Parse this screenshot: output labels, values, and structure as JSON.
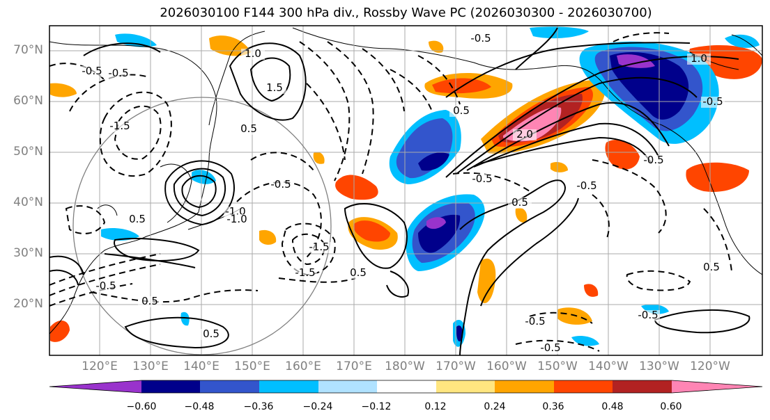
{
  "title": "2026030100 F144 300 hPa div., Rossby Wave PC (2026030300 - 2026030700)",
  "latitude_labels": [
    "70°N",
    "60°N",
    "50°N",
    "40°N",
    "30°N",
    "20°N"
  ],
  "longitude_labels": [
    "120°E",
    "130°E",
    "140°E",
    "150°E",
    "160°E",
    "170°E",
    "180°W",
    "170°W",
    "160°W",
    "150°W",
    "140°W",
    "130°W",
    "120°W"
  ],
  "colorbar": {
    "ticks": [
      "−0.60",
      "−0.48",
      "−0.36",
      "−0.24",
      "−0.12",
      "0.12",
      "0.24",
      "0.36",
      "0.48",
      "0.60"
    ],
    "colors": [
      "#9933cc",
      "#00008b",
      "#3355cc",
      "#00bfff",
      "#b0e2ff",
      "#ffffff",
      "#ffe680",
      "#ffa500",
      "#ff4500",
      "#b22222",
      "#ff85b4"
    ]
  },
  "contour_labels": [
    "-0.5",
    "-0.5",
    "-0.5",
    "0.5",
    "1.0",
    "1.5",
    "-1.5",
    "-1.0",
    "0.5",
    "-0.5",
    "-0.5",
    "0.5",
    "1.0",
    "-1.5",
    "-0.5",
    "0.5",
    "-0.5",
    "2.0",
    "0.5",
    "0.5",
    "-0.5",
    "-0.5",
    "0.5",
    "-0.5",
    "-0.5",
    "-1.0",
    "-1.5",
    "0.5",
    "-0.5"
  ]
}
